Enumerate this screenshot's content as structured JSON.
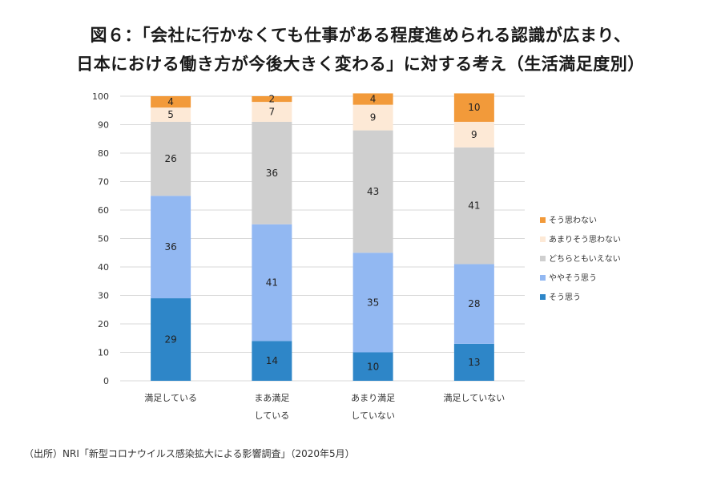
{
  "title": {
    "line1": "図６：「会社に行かなくても仕事がある程度進められる認識が広まり、",
    "line2": "日本における働き方が今後大きく変わる」に対する考え（生活満足度別）"
  },
  "source": "（出所）NRI「新型コロナウイルス感染拡大による影響調査」（2020年5月）",
  "chart_data": {
    "type": "bar",
    "stacked": true,
    "categories": [
      [
        "満足している"
      ],
      [
        "まあ満足",
        "している"
      ],
      [
        "あまり満足",
        "していない"
      ],
      [
        "満足していない"
      ]
    ],
    "series": [
      {
        "name": "そう思う",
        "values": [
          29,
          14,
          10,
          13
        ],
        "color": "#2e86c8"
      },
      {
        "name": "ややそう思う",
        "values": [
          36,
          41,
          35,
          28
        ],
        "color": "#92b8f2"
      },
      {
        "name": "どちらともいえない",
        "values": [
          26,
          36,
          43,
          41
        ],
        "color": "#cfcfcf"
      },
      {
        "name": "あまりそう思わない",
        "values": [
          5,
          7,
          9,
          9
        ],
        "color": "#fde9d6"
      },
      {
        "name": "そう思わない",
        "values": [
          4,
          2,
          4,
          10
        ],
        "color": "#f29a3a"
      }
    ],
    "ylim": [
      0,
      100
    ],
    "yticks": [
      0,
      10,
      20,
      30,
      40,
      50,
      60,
      70,
      80,
      90,
      100
    ],
    "grid": true,
    "legend": "right"
  }
}
